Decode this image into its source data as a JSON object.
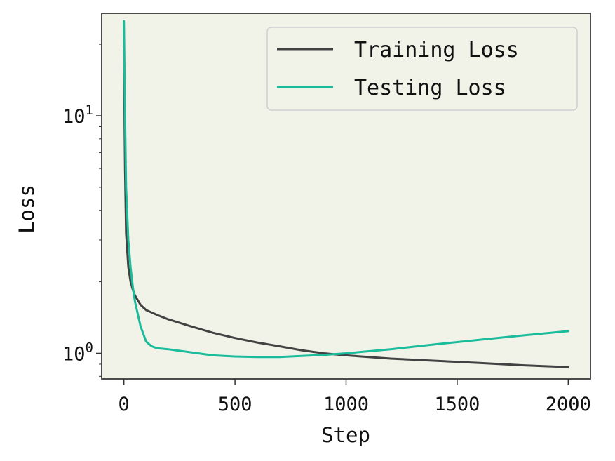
{
  "chart_data": {
    "type": "line",
    "xlabel": "Step",
    "ylabel": "Loss",
    "xlim": [
      -100,
      2100
    ],
    "ylim": [
      0.78,
      27
    ],
    "yscale": "log",
    "x_ticks": [
      0,
      500,
      1000,
      1500,
      2000
    ],
    "x_tick_labels": [
      "0",
      "500",
      "1000",
      "1500",
      "2000"
    ],
    "y_ticks": [
      1,
      10
    ],
    "y_tick_labels": [
      {
        "base": "10",
        "exp": "0"
      },
      {
        "base": "10",
        "exp": "1"
      }
    ],
    "legend_position": "top-right",
    "background": "#f2f3e8",
    "series": [
      {
        "name": "Training Loss",
        "color": "#424242",
        "x": [
          0,
          5,
          10,
          20,
          30,
          40,
          50,
          75,
          100,
          150,
          200,
          300,
          400,
          500,
          600,
          700,
          800,
          900,
          1000,
          1200,
          1400,
          1600,
          1800,
          2000
        ],
        "y": [
          19.5,
          6.0,
          3.2,
          2.3,
          2.0,
          1.85,
          1.75,
          1.6,
          1.52,
          1.45,
          1.39,
          1.3,
          1.22,
          1.16,
          1.11,
          1.07,
          1.03,
          1.0,
          0.98,
          0.95,
          0.93,
          0.91,
          0.89,
          0.875
        ]
      },
      {
        "name": "Testing Loss",
        "color": "#1abc9c",
        "x": [
          0,
          5,
          10,
          20,
          30,
          40,
          50,
          75,
          100,
          125,
          150,
          200,
          300,
          400,
          500,
          600,
          700,
          800,
          900,
          1000,
          1200,
          1400,
          1600,
          1800,
          2000
        ],
        "y": [
          25.0,
          10.0,
          5.0,
          3.0,
          2.3,
          1.9,
          1.65,
          1.3,
          1.12,
          1.07,
          1.05,
          1.04,
          1.01,
          0.98,
          0.97,
          0.965,
          0.965,
          0.975,
          0.985,
          1.0,
          1.04,
          1.09,
          1.14,
          1.19,
          1.24
        ]
      }
    ]
  }
}
